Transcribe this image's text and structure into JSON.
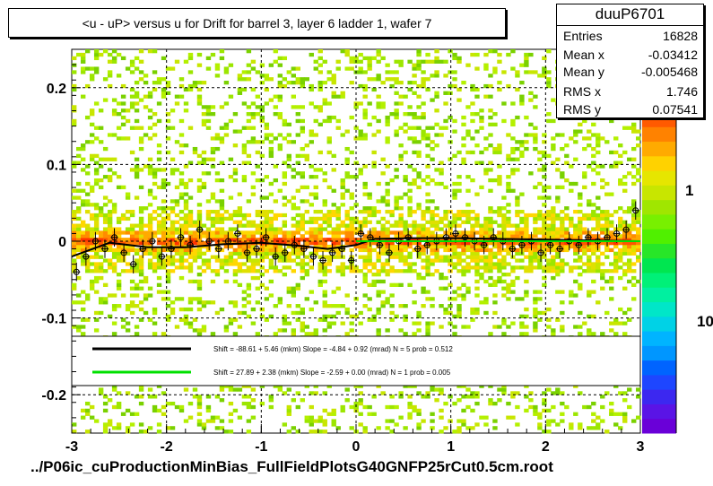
{
  "title": "<u - uP>       versus   u for Drift for barrel 3, layer 6 ladder 1, wafer 7",
  "stats": {
    "name": "duuP6701",
    "rows": [
      {
        "label": "Entries",
        "value": "16828"
      },
      {
        "label": "Mean x",
        "value": "-0.03412"
      },
      {
        "label": "Mean y",
        "value": "-0.005468"
      },
      {
        "label": "RMS x",
        "value": "1.746"
      },
      {
        "label": "RMS y",
        "value": "0.07541"
      }
    ]
  },
  "legend": [
    {
      "color": "#000000",
      "text": "Shift =   -88.61 + 5.46 (mkm) Slope =    -4.84 + 0.92 (mrad)  N = 5 prob = 0.512"
    },
    {
      "color": "#00e000",
      "text": "Shift =    27.89 + 2.38 (mkm) Slope =    -2.59 + 0.00 (mrad)  N = 1 prob = 0.005"
    }
  ],
  "footer": "../P06ic_cuProductionMinBias_FullFieldPlotsG40GNFP25rCut0.5cm.root",
  "colorbar": {
    "labels": [
      "1",
      "10"
    ]
  },
  "chart_data": {
    "type": "heatmap",
    "title": "<u - uP>       versus   u for Drift for barrel 3, layer 6 ladder 1, wafer 7",
    "xlim": [
      -3,
      3
    ],
    "ylim": [
      -0.25,
      0.25
    ],
    "xticks": [
      "-3",
      "-2",
      "-1",
      "0",
      "1",
      "2",
      "3"
    ],
    "yticks": [
      "-0.2",
      "-0.1",
      "0",
      "0.1",
      "0.2"
    ],
    "xtick_values": [
      -3,
      -2,
      -1,
      0,
      1,
      2,
      3
    ],
    "ytick_values": [
      -0.2,
      -0.1,
      0,
      0.1,
      0.2
    ],
    "grid": true,
    "z_scale": "log",
    "profile_x": [
      -2.95,
      -2.85,
      -2.75,
      -2.65,
      -2.55,
      -2.45,
      -2.35,
      -2.25,
      -2.15,
      -2.05,
      -1.95,
      -1.85,
      -1.75,
      -1.65,
      -1.55,
      -1.45,
      -1.35,
      -1.25,
      -1.15,
      -1.05,
      -0.95,
      -0.85,
      -0.75,
      -0.65,
      -0.55,
      -0.45,
      -0.35,
      -0.25,
      -0.15,
      -0.05,
      0.05,
      0.15,
      0.25,
      0.35,
      0.45,
      0.55,
      0.65,
      0.75,
      0.85,
      0.95,
      1.05,
      1.15,
      1.25,
      1.35,
      1.45,
      1.55,
      1.65,
      1.75,
      1.85,
      1.95,
      2.05,
      2.15,
      2.25,
      2.35,
      2.45,
      2.55,
      2.65,
      2.75,
      2.85,
      2.95
    ],
    "profile_y": [
      -0.04,
      -0.02,
      0.0,
      -0.01,
      0.005,
      -0.015,
      -0.03,
      -0.01,
      0.0,
      -0.02,
      -0.01,
      0.005,
      -0.005,
      0.015,
      0.0,
      -0.01,
      0.0,
      0.01,
      -0.015,
      -0.01,
      0.005,
      -0.02,
      -0.015,
      -0.005,
      -0.01,
      -0.02,
      -0.025,
      -0.015,
      -0.01,
      -0.025,
      0.01,
      0.005,
      -0.005,
      -0.015,
      0.0,
      0.005,
      -0.01,
      -0.005,
      0.0,
      0.005,
      0.01,
      0.005,
      0.0,
      -0.005,
      0.005,
      0.0,
      -0.01,
      -0.005,
      0.0,
      -0.015,
      -0.005,
      -0.01,
      0.0,
      -0.005,
      0.005,
      0.0,
      0.005,
      0.01,
      0.015,
      0.04
    ],
    "fits": [
      {
        "color": "#000000",
        "x": [
          -3,
          -2.6,
          -2.2,
          -1.8,
          -1.4,
          -1.0,
          -0.6,
          -0.3,
          0.0,
          0.2,
          0.6,
          1.0,
          1.5,
          2.0,
          2.5,
          3.0
        ],
        "y": [
          -0.02,
          -0.002,
          -0.008,
          -0.008,
          -0.004,
          -0.002,
          -0.006,
          -0.01,
          -0.005,
          0.003,
          0.004,
          0.004,
          0.003,
          0.002,
          0.001,
          0.0
        ]
      },
      {
        "color": "#00e000",
        "x": [
          0.0,
          3.0
        ],
        "y": [
          0.0,
          0.0
        ]
      }
    ]
  }
}
